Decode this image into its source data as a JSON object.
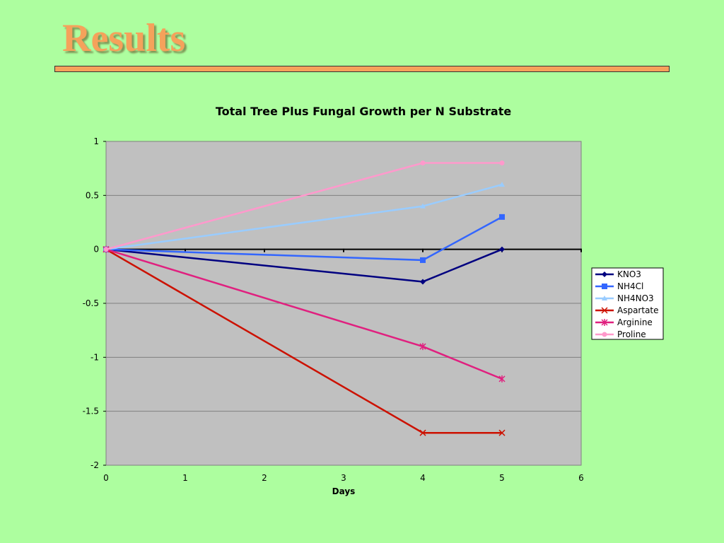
{
  "slide": {
    "title": "Results"
  },
  "chart_data": {
    "type": "line",
    "title": "Total Tree Plus Fungal Growth per N Substrate",
    "xlabel": "Days",
    "ylabel": "",
    "xlim": [
      0,
      6
    ],
    "ylim": [
      -2,
      1
    ],
    "xticks": [
      0,
      1,
      2,
      3,
      4,
      5,
      6
    ],
    "yticks": [
      1,
      0.5,
      0,
      -0.5,
      -1,
      -1.5,
      -2
    ],
    "ytick_labels": [
      "1",
      "0.5",
      "0",
      "-0.5",
      "-1",
      "-1.5",
      "-2"
    ],
    "grid": true,
    "legend": "right",
    "x": [
      0,
      4,
      5
    ],
    "series": [
      {
        "name": "KNO3",
        "values": [
          0,
          -0.3,
          0
        ],
        "color": "#000080",
        "marker": "diamond"
      },
      {
        "name": "NH4Cl",
        "values": [
          0,
          -0.1,
          0.3
        ],
        "color": "#3366ff",
        "marker": "square"
      },
      {
        "name": "NH4NO3",
        "values": [
          0,
          0.4,
          0.6
        ],
        "color": "#99ccff",
        "marker": "triangle"
      },
      {
        "name": "Aspartate",
        "values": [
          0,
          -1.7,
          -1.7
        ],
        "color": "#cc1100",
        "marker": "x"
      },
      {
        "name": "Arginine",
        "values": [
          0,
          -0.9,
          -1.2
        ],
        "color": "#e0207f",
        "marker": "star"
      },
      {
        "name": "Proline",
        "values": [
          0,
          0.8,
          0.8
        ],
        "color": "#ff99cc",
        "marker": "circle"
      }
    ]
  }
}
